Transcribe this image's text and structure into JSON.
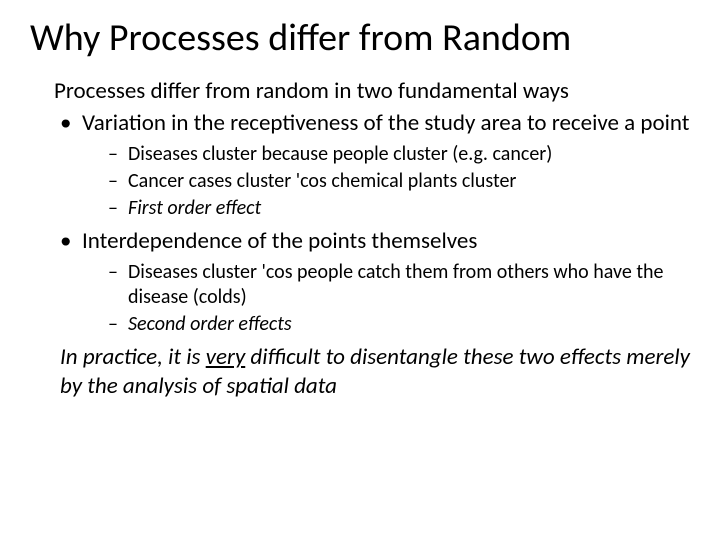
{
  "title": "Why Processes differ from Random",
  "intro": "Processes differ from random in two fundamental ways",
  "bullets": [
    {
      "text": "Variation in the receptiveness of the study area to receive a point",
      "sub": [
        {
          "text": "Diseases cluster because people cluster (e.g. cancer)",
          "italic": false
        },
        {
          "text": "Cancer cases cluster 'cos chemical plants cluster",
          "italic": false
        },
        {
          "text": "First order effect",
          "italic": true
        }
      ]
    },
    {
      "text": "Interdependence of the points themselves",
      "sub": [
        {
          "text": "Diseases cluster 'cos people catch them from others who have the disease (colds)",
          "italic": false
        },
        {
          "text": "Second order effects",
          "italic": true
        }
      ]
    }
  ],
  "closing_pre": "In practice, it is ",
  "closing_u": "very",
  "closing_post": " difficult to disentangle these two effects merely by the analysis of spatial data",
  "colors": {
    "bg": "#ffffff",
    "text": "#000000"
  },
  "fontsize": {
    "title": 38,
    "body": 23,
    "sub": 20
  }
}
